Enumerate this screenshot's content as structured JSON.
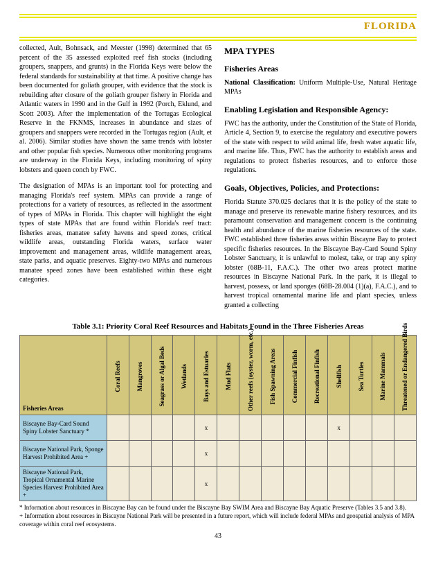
{
  "header": {
    "title": "FLORIDA"
  },
  "left": {
    "p1": "collected, Ault, Bohnsack, and Meester (1998) determined that 65 percent of the 35 assessed exploited reef fish stocks (including groupers, snappers, and grunts) in the Florida Keys were below the federal standards for sustainability at that time.  A positive change has been documented for goliath grouper, with evidence that the stock is rebuilding after closure of the goliath grouper fishery in Florida and Atlantic waters in 1990 and in the Gulf in 1992 (Porch, Eklund, and Scott 2003).  After the implementation of the Tortugas Ecological Reserve in the FKNMS, increases in abundance and sizes of groupers and snappers were recorded in the Tortugas region (Ault, et al. 2006).  Similar studies have shown the same trends with lobster and other popular fish species.  Numerous other monitoring programs are underway in the Florida Keys, including monitoring of spiny lobsters and queen conch by FWC.",
    "p2": "The designation of MPAs is an important tool for protecting and managing Florida's reef system.  MPAs can provide a range of protections for a variety of resources, as reflected in the assortment of types of MPAs in Florida.  This chapter will highlight the eight types of state MPAs that are found within Florida's reef tract: fisheries areas, manatee safety havens and speed zones, critical wildlife areas, outstanding Florida waters, surface water improvement and management areas, wildlife management areas, state parks, and aquatic preserves.  Eighty-two MPAs and numerous manatee speed zones have been established within these eight categories."
  },
  "right": {
    "h2": "MPA TYPES",
    "h3a": "Fisheries Areas",
    "nc_label": "National Classification:",
    "nc_text": " Uniform Multiple-Use, Natural Heritage MPAs",
    "h3b": "Enabling Legislation and Responsible Agency:",
    "p1": "FWC has the authority, under the Constitution of the State of Florida, Article 4, Section 9, to exercise the regulatory and executive powers of the state with respect to wild animal life, fresh water aquatic life, and marine life.  Thus, FWC has the authority to establish areas and regulations to protect fisheries resources, and to enforce those regulations.",
    "h3c": "Goals, Objectives, Policies, and Protections:",
    "p2": "Florida Statute 370.025 declares that it is the policy of the state to manage and preserve its renewable marine fishery resources, and its paramount conservation and management concern is the continuing health and abundance of the marine fisheries resources of the state.  FWC established three fisheries areas within Biscayne Bay to protect specific fisheries resources.  In the Biscayne Bay-Card Sound Spiny Lobster Sanctuary, it is unlawful to molest, take, or trap any spiny lobster (68B-11, F.A.C.).  The other two areas protect marine resources in Biscayne National Park.  In the park, it is illegal to harvest, possess, or land sponges (68B-28.004 (1)(a), F.A.C.), and to harvest tropical ornamental marine life and plant species, unless granted a collecting"
  },
  "table": {
    "title": "Table 3.1: Priority Coral Reef Resources and Habitats Found in the Three Fisheries Areas",
    "corner": "Fisheries Areas",
    "cols": [
      "Coral Reefs",
      "Mangroves",
      "Seagrass or\nAlgal Beds",
      "Wetlands",
      "Bays and Estuaries",
      "Mud Flats",
      "Other reefs (oyster,\nworm, etc.)",
      "Fish Spawning Areas",
      "Commercial Finfish",
      "Recreational Finfish",
      "Shellfish",
      "Sea Turtles",
      "Marine Mammals",
      "Threatened or\nEndangered Birds"
    ],
    "rows": [
      {
        "label": "Biscayne Bay-Card Sound Spiny Lobster Sanctuary *",
        "marks": {
          "4": "x",
          "10": "x"
        }
      },
      {
        "label": "Biscayne National Park, Sponge Harvest Prohibited Area +",
        "marks": {
          "4": "x"
        }
      },
      {
        "label": "Biscayne National Park, Tropical Ornamental Marine Species Harvest Prohibited Area +",
        "marks": {
          "4": "x"
        }
      }
    ]
  },
  "footnotes": {
    "f1": "* Information about resources in Biscayne Bay can be found under the Biscayne Bay SWIM Area and Biscayne Bay Aquatic Preserve (Tables 3.5 and 3.8).",
    "f2": "+ Information about resources in Biscayne National Park will be presented in a future report, which will include federal MPAs and geospatial analysis of MPA coverage within coral reef ecosystems."
  },
  "pagenum": "43"
}
